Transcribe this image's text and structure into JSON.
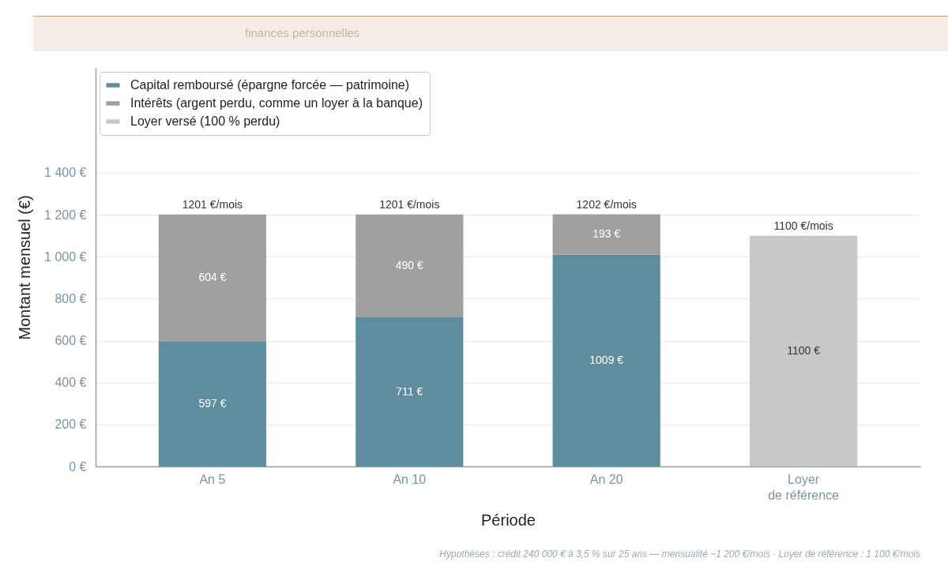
{
  "chart_data": {
    "type": "bar",
    "stacked": true,
    "subtitle": "finances personnelles",
    "xlabel": "Période",
    "ylabel": "Montant mensuel (€)",
    "categories": [
      "An 5",
      "An 10",
      "An 20",
      "Loyer\nde référence"
    ],
    "series": [
      {
        "name": "Capital remboursé (épargne forcée — patrimoine)",
        "color": "#5e8d9f",
        "values": [
          597,
          711,
          1009,
          null
        ],
        "value_labels": [
          "597 €",
          "711 €",
          "1009 €",
          null
        ]
      },
      {
        "name": "Intérêts (argent perdu, comme un loyer à la banque)",
        "color": "#a0a0a0",
        "values": [
          604,
          490,
          193,
          null
        ],
        "value_labels": [
          "604 €",
          "490 €",
          "193 €",
          null
        ]
      },
      {
        "name": "Loyer versé (100 % perdu)",
        "color": "#c8c8c8",
        "values": [
          null,
          null,
          null,
          1100
        ],
        "value_labels": [
          null,
          null,
          null,
          "1100 €"
        ]
      }
    ],
    "totals": [
      "1201 €/mois",
      "1201 €/mois",
      "1202 €/mois",
      "1100 €/mois"
    ],
    "ylim": [
      0,
      1900
    ],
    "yticks": [
      {
        "value": 0,
        "label": "0 €"
      },
      {
        "value": 200,
        "label": "200 €"
      },
      {
        "value": 400,
        "label": "400 €"
      },
      {
        "value": 600,
        "label": "600 €"
      },
      {
        "value": 800,
        "label": "800 €"
      },
      {
        "value": 1000,
        "label": "1 000 €"
      },
      {
        "value": 1200,
        "label": "1 200 €"
      },
      {
        "value": 1400,
        "label": "1 400 €"
      }
    ],
    "grid": "y",
    "legend": "top left",
    "annotations": [
      "Hypothèses : crédit 240 000 € à 3,5 % sur 25 ans — mensualité ~1 200 €/mois · Loyer de référence : 1 100 €/mois"
    ]
  }
}
